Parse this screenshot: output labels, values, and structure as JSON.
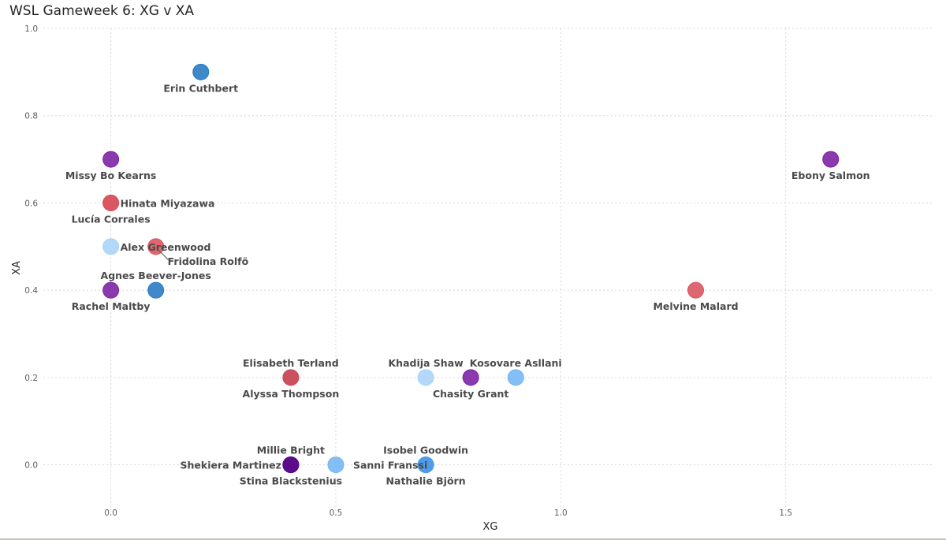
{
  "chart_data": {
    "type": "scatter",
    "title": "WSL Gameweek 6: XG v XA",
    "xlabel": "XG",
    "ylabel": "XA",
    "xlim": [
      -0.15,
      1.83
    ],
    "ylim": [
      -0.12,
      1.0
    ],
    "x_ticks": [
      0.0,
      0.5,
      1.0,
      1.5
    ],
    "x_tick_labels": [
      "0.0",
      "0.5",
      "1.0",
      "1.5"
    ],
    "y_ticks": [
      0.0,
      0.2,
      0.4,
      0.6,
      0.8,
      1.0
    ],
    "y_tick_labels": [
      "0.0",
      "0.2",
      "0.4",
      "0.6",
      "0.8",
      "1.0"
    ],
    "grid": true,
    "points": [
      {
        "x": 0.2,
        "y": 0.9,
        "color": "#2679c2",
        "label": "Erin Cuthbert",
        "pos": "below"
      },
      {
        "x": 0.0,
        "y": 0.7,
        "color": "#7b1fa2",
        "label": "Missy Bo Kearns",
        "pos": "below"
      },
      {
        "x": 1.6,
        "y": 0.7,
        "color": "#7b1fa2",
        "label": "Ebony Salmon",
        "pos": "below"
      },
      {
        "x": 0.0,
        "y": 0.6,
        "color": "#d9535f",
        "label": "Hinata Miyazawa",
        "pos": "right"
      },
      {
        "x": 0.0,
        "y": 0.6,
        "color": "#d9535f",
        "label": "Lucía Corrales",
        "pos": "below"
      },
      {
        "x": 0.0,
        "y": 0.5,
        "color": "#a9d3f9",
        "label": "Alex Greenwood",
        "pos": "right"
      },
      {
        "x": 0.1,
        "y": 0.5,
        "color": "#d9535f",
        "label": "Fridolina Rolfö",
        "pos": "belowright"
      },
      {
        "x": 0.1,
        "y": 0.4,
        "color": "#2679c2",
        "label": "Agnes Beever-Jones",
        "pos": "above"
      },
      {
        "x": 0.0,
        "y": 0.4,
        "color": "#7b1fa2",
        "label": "Rachel Maltby",
        "pos": "below"
      },
      {
        "x": 1.3,
        "y": 0.4,
        "color": "#d9535f",
        "label": "Melvine Malard",
        "pos": "below"
      },
      {
        "x": 0.4,
        "y": 0.2,
        "color": "#c94f5c",
        "label": "Elisabeth Terland",
        "pos": "above"
      },
      {
        "x": 0.4,
        "y": 0.2,
        "color": "#c94f5c",
        "label": "Alyssa Thompson",
        "pos": "below"
      },
      {
        "x": 0.7,
        "y": 0.2,
        "color": "#a9d3f9",
        "label": "Khadija Shaw",
        "pos": "above"
      },
      {
        "x": 0.8,
        "y": 0.2,
        "color": "#7b1fa2",
        "label": "Chasity Grant",
        "pos": "below"
      },
      {
        "x": 0.9,
        "y": 0.2,
        "color": "#72b6f3",
        "label": "Kosovare Asllani",
        "pos": "above"
      },
      {
        "x": 0.4,
        "y": 0.0,
        "color": "#5a0c8a",
        "label": "Millie Bright",
        "pos": "above"
      },
      {
        "x": 0.4,
        "y": 0.0,
        "color": "#5a0c8a",
        "label": "Shekiera Martinez",
        "pos": "left"
      },
      {
        "x": 0.4,
        "y": 0.0,
        "color": "#5a0c8a",
        "label": "Stina Blackstenius",
        "pos": "below"
      },
      {
        "x": 0.5,
        "y": 0.0,
        "color": "#72b6f3",
        "label": "Sanni Franssi",
        "pos": "belowright2"
      },
      {
        "x": 0.7,
        "y": 0.0,
        "color": "#4b9be8",
        "label": "Isobel Goodwin",
        "pos": "above"
      },
      {
        "x": 0.7,
        "y": 0.0,
        "color": "#4b9be8",
        "label": "Nathalie Björn",
        "pos": "below"
      }
    ]
  }
}
